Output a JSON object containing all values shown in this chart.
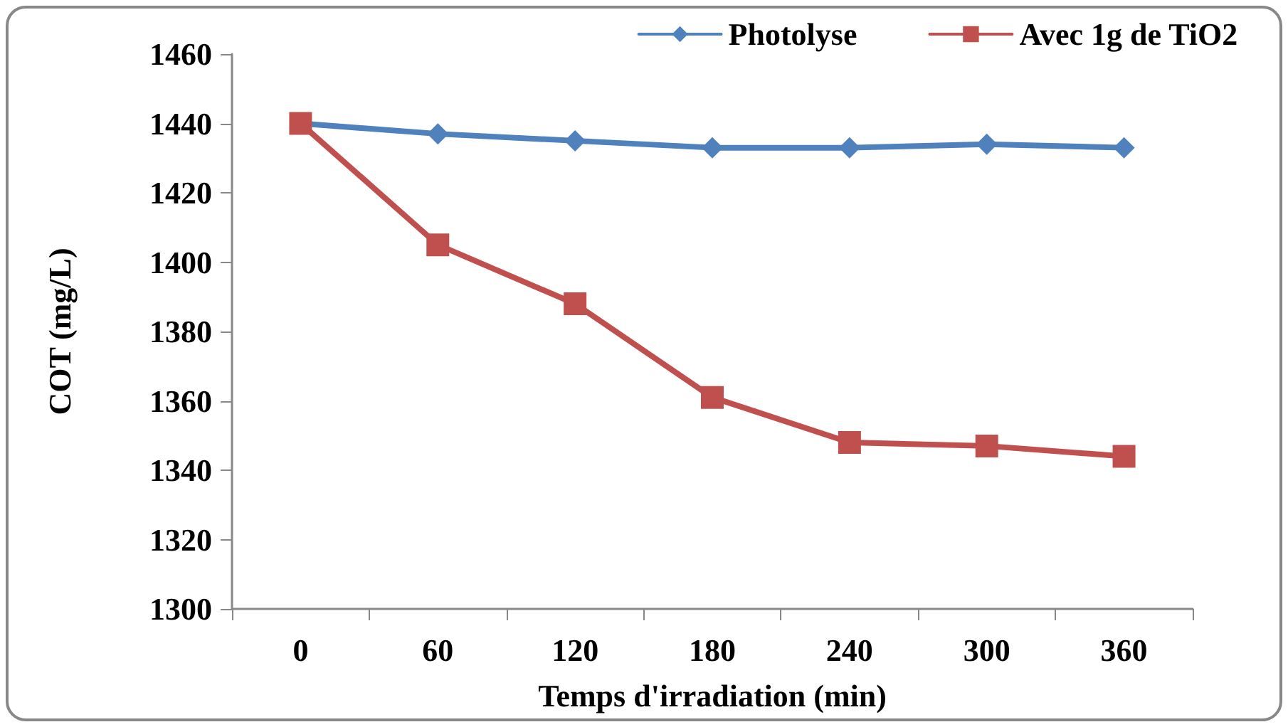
{
  "chart_data": {
    "type": "line",
    "xlabel": "Temps d'irradiation (min)",
    "ylabel": "COT (mg/L)",
    "categories": [
      "0",
      "60",
      "120",
      "180",
      "240",
      "300",
      "360"
    ],
    "series": [
      {
        "name": "Photolyse",
        "color": "#4f81bd",
        "marker": "diamond",
        "values": [
          1440,
          1437,
          1435,
          1433,
          1433,
          1434,
          1433
        ]
      },
      {
        "name": "Avec 1g de TiO2",
        "color": "#c0504d",
        "marker": "square",
        "values": [
          1440,
          1405,
          1388,
          1361,
          1348,
          1347,
          1344
        ]
      }
    ],
    "ylim": [
      1300,
      1460
    ],
    "yticks": [
      1300,
      1320,
      1340,
      1360,
      1380,
      1400,
      1420,
      1440,
      1460
    ],
    "grid": false,
    "legend": "top right",
    "line_style": "solid"
  }
}
